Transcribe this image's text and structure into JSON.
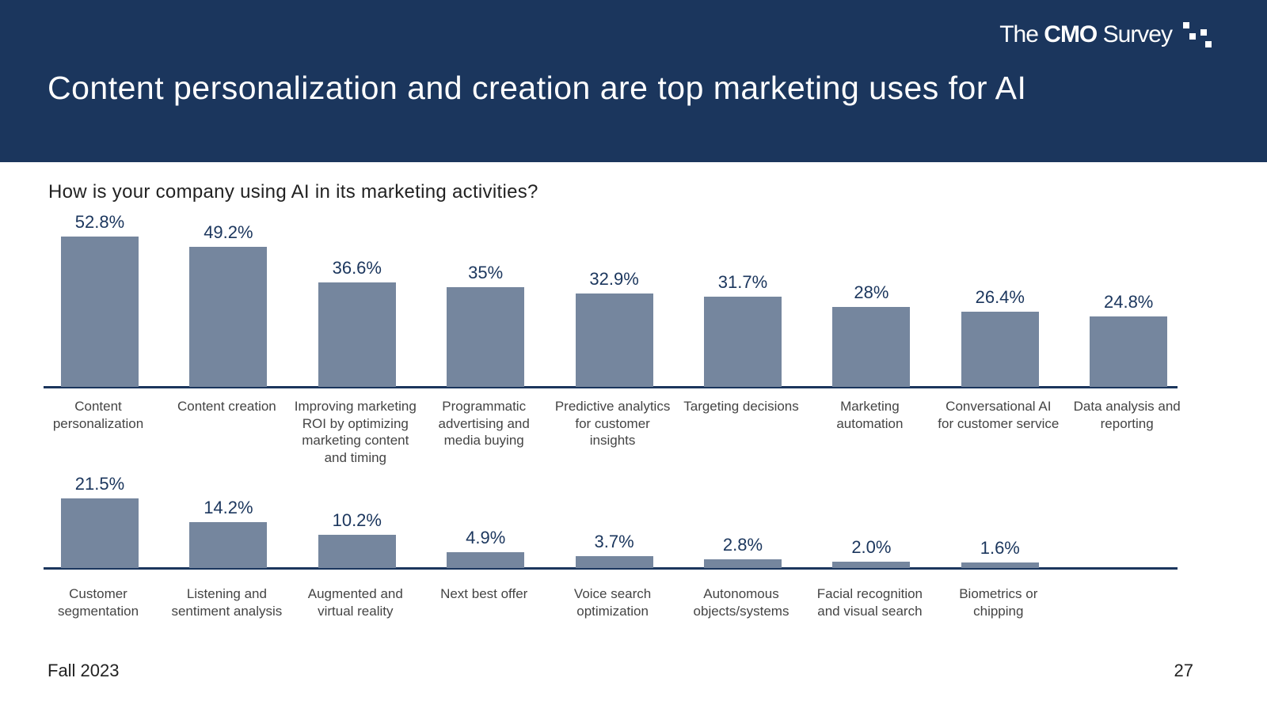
{
  "header": {
    "title": "Content personalization and creation are top marketing uses for AI",
    "logo": {
      "the": "The",
      "cmo": "CMO",
      "survey": "Survey"
    }
  },
  "subtitle": "How is your company using AI in its marketing activities?",
  "chart_data": [
    {
      "type": "bar",
      "color": "#75869e",
      "categories": [
        "Content personalization",
        "Content creation",
        "Improving marketing ROI by optimizing marketing content and timing",
        "Programmatic advertising and media buying",
        "Predictive analytics for customer insights",
        "Targeting decisions",
        "Marketing automation",
        "Conversational AI for customer service",
        "Data analysis and reporting"
      ],
      "values": [
        52.8,
        49.2,
        36.6,
        35,
        32.9,
        31.7,
        28,
        26.4,
        24.8
      ],
      "value_labels": [
        "52.8%",
        "49.2%",
        "36.6%",
        "35%",
        "32.9%",
        "31.7%",
        "28%",
        "26.4%",
        "24.8%"
      ]
    },
    {
      "type": "bar",
      "color": "#75869e",
      "categories": [
        "Customer segmentation",
        "Listening and sentiment analysis",
        "Augmented and virtual reality",
        "Next best offer",
        "Voice search optimization",
        "Autonomous objects/systems",
        "Facial recognition and visual search",
        "Biometrics or chipping"
      ],
      "values": [
        21.5,
        14.2,
        10.2,
        4.9,
        3.7,
        2.8,
        2.0,
        1.6
      ],
      "value_labels": [
        "21.5%",
        "14.2%",
        "10.2%",
        "4.9%",
        "3.7%",
        "2.8%",
        "2.0%",
        "1.6%"
      ]
    }
  ],
  "footer": {
    "season": "Fall 2023",
    "page": "27"
  }
}
